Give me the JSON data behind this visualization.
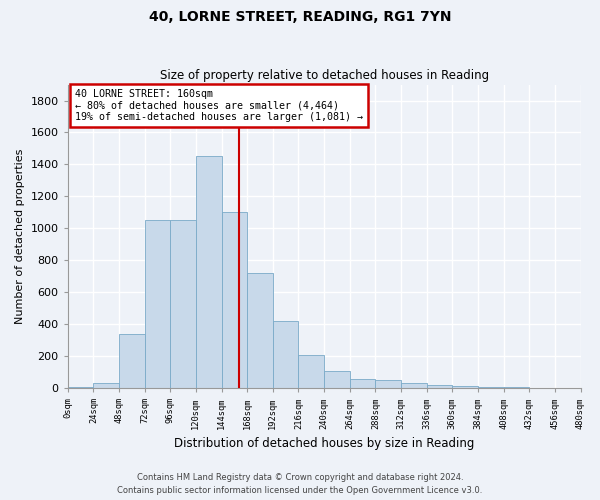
{
  "title1": "40, LORNE STREET, READING, RG1 7YN",
  "title2": "Size of property relative to detached houses in Reading",
  "xlabel": "Distribution of detached houses by size in Reading",
  "ylabel": "Number of detached properties",
  "bar_color": "#c8d9ea",
  "bar_edge_color": "#7aaac8",
  "property_size": 160,
  "vline_color": "#cc0000",
  "annotation_line1": "40 LORNE STREET: 160sqm",
  "annotation_line2": "← 80% of detached houses are smaller (4,464)",
  "annotation_line3": "19% of semi-detached houses are larger (1,081) →",
  "annotation_box_color": "#ffffff",
  "annotation_box_edge": "#cc0000",
  "bin_edges": [
    0,
    24,
    48,
    72,
    96,
    120,
    144,
    168,
    192,
    216,
    240,
    264,
    288,
    312,
    336,
    360,
    384,
    408,
    432,
    456,
    480
  ],
  "counts": [
    10,
    30,
    340,
    1050,
    1050,
    1450,
    1100,
    720,
    420,
    210,
    105,
    55,
    50,
    35,
    20,
    15,
    10,
    5,
    3,
    2
  ],
  "yticks": [
    0,
    200,
    400,
    600,
    800,
    1000,
    1200,
    1400,
    1600,
    1800
  ],
  "ylim": [
    0,
    1900
  ],
  "xlim": [
    0,
    480
  ],
  "background_color": "#eef2f8",
  "grid_color": "#ffffff",
  "footer1": "Contains HM Land Registry data © Crown copyright and database right 2024.",
  "footer2": "Contains public sector information licensed under the Open Government Licence v3.0."
}
